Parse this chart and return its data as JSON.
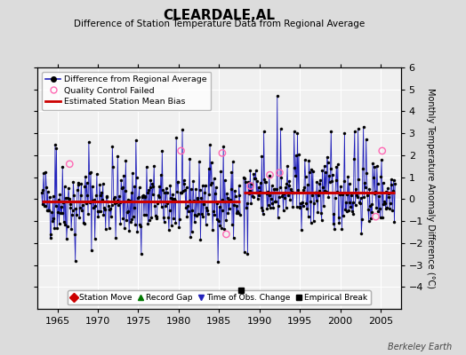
{
  "title": "CLEARDALE,AL",
  "subtitle": "Difference of Station Temperature Data from Regional Average",
  "ylabel_right": "Monthly Temperature Anomaly Difference (°C)",
  "ylim": [
    -5,
    6
  ],
  "yticks": [
    -4,
    -3,
    -2,
    -1,
    0,
    1,
    2,
    3,
    4,
    5,
    6
  ],
  "xlim": [
    1962.5,
    2007.5
  ],
  "xticks": [
    1965,
    1970,
    1975,
    1980,
    1985,
    1990,
    1995,
    2000,
    2005
  ],
  "bg_color": "#dcdcdc",
  "plot_bg_color": "#f0f0f0",
  "grid_color": "#ffffff",
  "line_color": "#2222bb",
  "bias_color": "#cc0000",
  "bias_early": -0.12,
  "bias_late": 0.28,
  "break_year": 1987.75,
  "break_value": -4.15,
  "watermark": "Berkeley Earth",
  "seed": 42
}
